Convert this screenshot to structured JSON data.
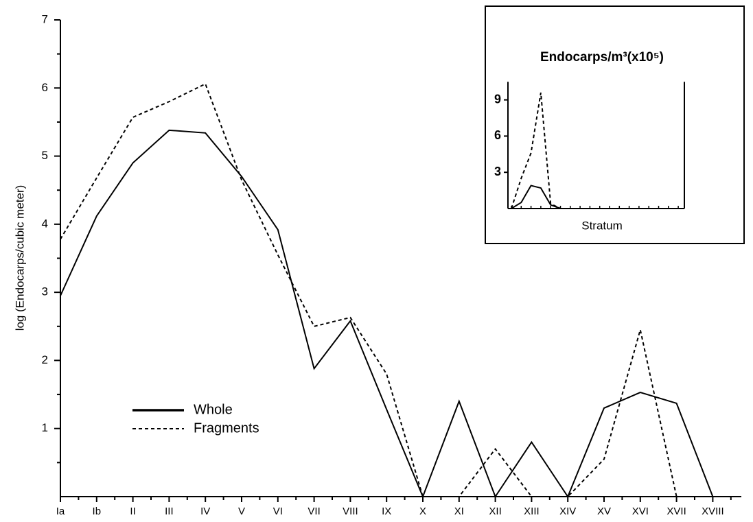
{
  "chart_data": [
    {
      "type": "line",
      "y_label": "log (Endocarps/cubic meter)",
      "categories": [
        "Ia",
        "Ib",
        "II",
        "III",
        "IV",
        "V",
        "VI",
        "VII",
        "VIII",
        "IX",
        "X",
        "XI",
        "XII",
        "XIII",
        "XIV",
        "XV",
        "XVI",
        "XVII",
        "XVIII"
      ],
      "series": [
        {
          "name": "Whole",
          "color": "#000000",
          "dash": "solid",
          "values": [
            2.95,
            4.12,
            4.9,
            5.38,
            5.34,
            4.7,
            3.92,
            1.88,
            2.58,
            1.28,
            0,
            1.4,
            0,
            0.8,
            0,
            1.3,
            1.53,
            1.37,
            0
          ]
        },
        {
          "name": "Fragments",
          "color": "#000000",
          "dash": "dashed",
          "values": [
            3.78,
            4.68,
            5.57,
            5.8,
            6.06,
            4.65,
            3.55,
            2.5,
            2.63,
            1.8,
            0,
            0,
            0.7,
            0,
            0,
            0.55,
            2.45,
            0,
            null
          ]
        }
      ],
      "ylim": [
        0,
        7
      ],
      "yticks": [
        1,
        2,
        3,
        4,
        5,
        6,
        7
      ]
    },
    {
      "type": "line",
      "title": "Endocarps/m³(x10⁵)",
      "x_label": "Stratum",
      "series": [
        {
          "color": "#000000",
          "dash": "solid",
          "values": [
            0,
            0.5,
            1.9,
            1.7,
            0.3,
            0,
            0,
            0,
            0,
            0,
            0,
            0,
            0,
            0,
            0,
            0,
            0,
            0
          ]
        },
        {
          "color": "#000000",
          "dash": "dashed",
          "values": [
            0,
            2.5,
            4.6,
            9.6,
            0.4,
            0,
            0,
            0,
            0,
            0,
            0,
            0,
            0,
            0,
            0,
            0,
            0,
            0
          ]
        }
      ],
      "ylim": [
        0,
        10.5
      ],
      "yticks": [
        3,
        6,
        9
      ]
    }
  ]
}
